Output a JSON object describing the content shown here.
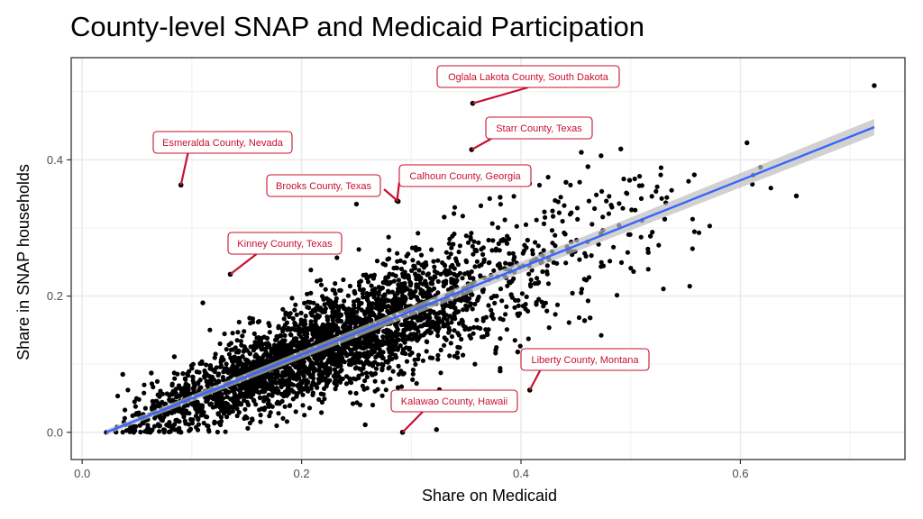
{
  "chart_data": {
    "type": "scatter",
    "title": "County-level SNAP and Medicaid Participation",
    "xlabel": "Share on Medicaid",
    "ylabel": "Share in SNAP households",
    "xlim": [
      -0.01,
      0.75
    ],
    "ylim": [
      -0.04,
      0.55
    ],
    "xticks": [
      0.0,
      0.2,
      0.4,
      0.6
    ],
    "xtick_labels": [
      "0.0",
      "0.2",
      "0.4",
      "0.6"
    ],
    "yticks": [
      0.0,
      0.2,
      0.4
    ],
    "ytick_labels": [
      "0.0",
      "0.2",
      "0.4"
    ],
    "grid": true,
    "point_color": "#000000",
    "trend_color": "#3366ff",
    "band_color": "#bdbdbd",
    "annotation_color": "#c8102e",
    "trend_line": {
      "x": [
        0.022,
        0.722
      ],
      "y": [
        0.0,
        0.448
      ],
      "band": [
        0.0,
        0.012
      ]
    },
    "sample_points": {
      "count": 3100,
      "x_range": [
        0.022,
        0.72
      ],
      "note_slope": 0.64
    },
    "points": [
      [
        0.022,
        0.0
      ],
      [
        0.722,
        0.509
      ],
      [
        0.606,
        0.425
      ],
      [
        0.651,
        0.347
      ],
      [
        0.558,
        0.378
      ],
      [
        0.532,
        0.337
      ],
      [
        0.531,
        0.313
      ],
      [
        0.518,
        0.288
      ],
      [
        0.516,
        0.264
      ],
      [
        0.463,
        0.168
      ],
      [
        0.458,
        0.164
      ],
      [
        0.455,
        0.411
      ],
      [
        0.461,
        0.39
      ],
      [
        0.491,
        0.416
      ],
      [
        0.473,
        0.406
      ],
      [
        0.441,
        0.367
      ],
      [
        0.397,
        0.118
      ],
      [
        0.381,
        0.09
      ],
      [
        0.11,
        0.19
      ],
      [
        0.037,
        0.085
      ],
      [
        0.063,
        0.087
      ],
      [
        0.084,
        0.111
      ],
      [
        0.047,
        0.0
      ],
      [
        0.062,
        0.0
      ],
      [
        0.09,
        0.0
      ],
      [
        0.258,
        0.011
      ],
      [
        0.323,
        0.004
      ],
      [
        0.25,
        0.335
      ],
      [
        0.33,
        0.316
      ],
      [
        0.381,
        0.345
      ],
      [
        0.392,
        0.366
      ],
      [
        0.499,
        0.37
      ],
      [
        0.406,
        0.282
      ],
      [
        0.416,
        0.22
      ],
      [
        0.39,
        0.238
      ]
    ],
    "labeled_points": [
      {
        "label": "Oglala Lakota County, South Dakota",
        "x": 0.356,
        "y": 0.483
      },
      {
        "label": "Starr County, Texas",
        "x": 0.355,
        "y": 0.415
      },
      {
        "label": "Esmeralda County, Nevada",
        "x": 0.09,
        "y": 0.363
      },
      {
        "label": "Brooks County, Texas",
        "x": 0.288,
        "y": 0.339
      },
      {
        "label": "Calhoun County, Georgia",
        "x": 0.287,
        "y": 0.34
      },
      {
        "label": "Kinney County, Texas",
        "x": 0.135,
        "y": 0.232
      },
      {
        "label": "Liberty County, Montana",
        "x": 0.408,
        "y": 0.062
      },
      {
        "label": "Kalawao County, Hawaii",
        "x": 0.292,
        "y": 0.0
      }
    ]
  }
}
